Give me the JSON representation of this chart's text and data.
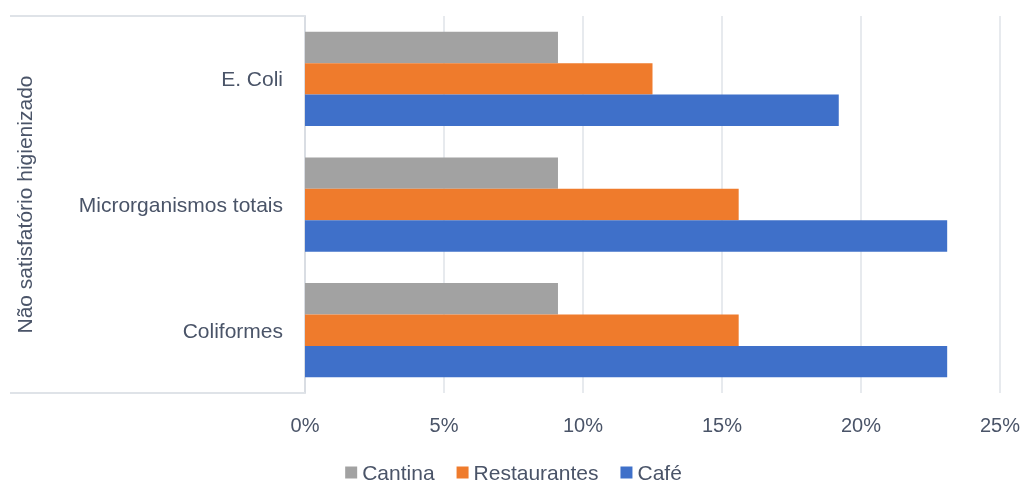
{
  "chart_data": {
    "type": "bar",
    "orientation": "horizontal",
    "ylabel": "Não satisfatório higienizado",
    "categories": [
      "E. Coli",
      "Microrganismos totais",
      "Coliformes"
    ],
    "series": [
      {
        "name": "Cantina",
        "color": "#a2a2a2",
        "values": [
          9.1,
          9.1,
          9.1
        ]
      },
      {
        "name": "Restaurantes",
        "color": "#ef7b2c",
        "values": [
          12.5,
          15.6,
          15.6
        ]
      },
      {
        "name": "Café",
        "color": "#3f70c9",
        "values": [
          19.2,
          23.1,
          23.1
        ]
      }
    ],
    "xlim": [
      0,
      25
    ],
    "xticks": [
      {
        "value": 0,
        "label": "0%"
      },
      {
        "value": 5,
        "label": "5%"
      },
      {
        "value": 10,
        "label": "10%"
      },
      {
        "value": 15,
        "label": "15%"
      },
      {
        "value": 20,
        "label": "20%"
      },
      {
        "value": 25,
        "label": "25%"
      }
    ],
    "grid": "x",
    "legend": "bottom"
  }
}
